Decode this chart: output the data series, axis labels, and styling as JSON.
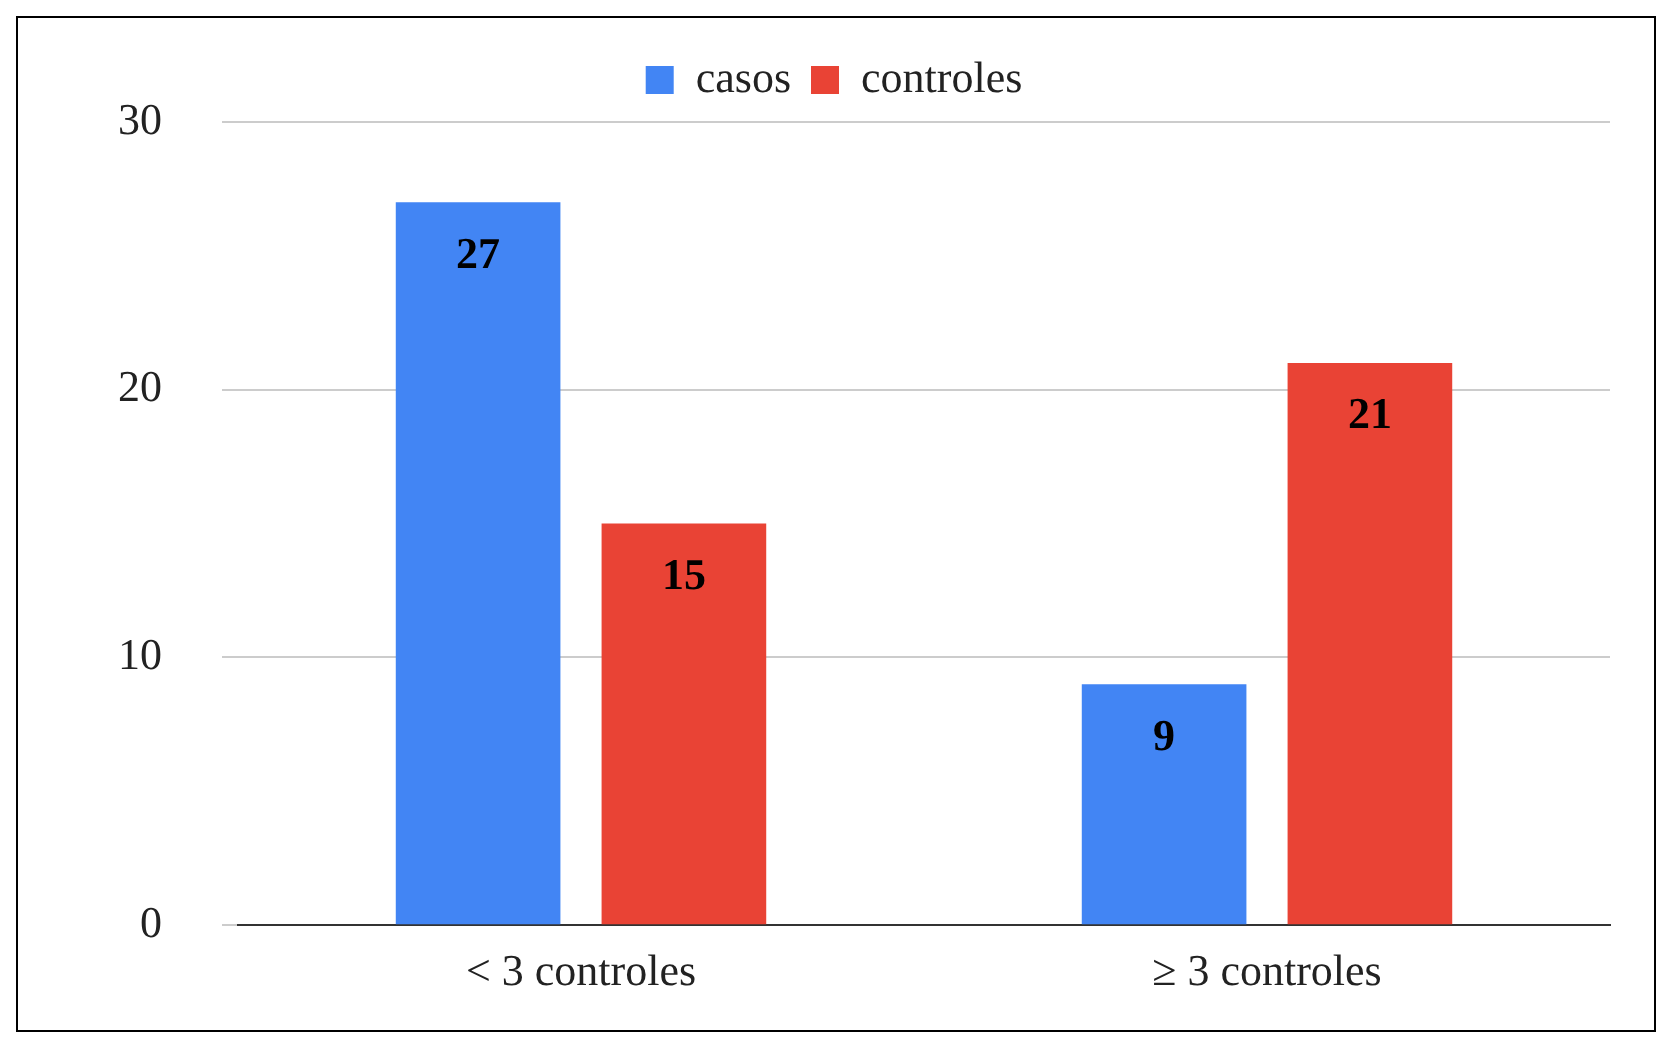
{
  "chart_data": {
    "type": "bar",
    "categories": [
      "< 3 controles",
      "≥ 3 controles"
    ],
    "series": [
      {
        "name": "casos",
        "color": "#4285f4",
        "values": [
          27,
          9
        ]
      },
      {
        "name": "controles",
        "color": "#e94335",
        "values": [
          15,
          21
        ]
      }
    ],
    "ylim": [
      0,
      30
    ],
    "yticks": [
      0,
      10,
      20,
      30
    ],
    "grid": "y",
    "legend": "top",
    "data_labels": true
  }
}
